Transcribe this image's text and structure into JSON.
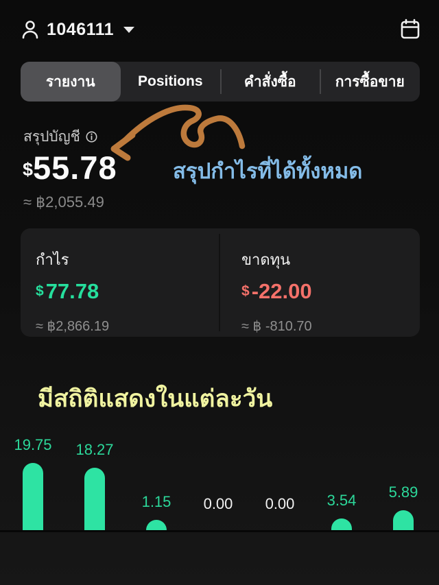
{
  "header": {
    "account_id": "1046111"
  },
  "tabs": [
    {
      "label": "รายงาน",
      "selected": true
    },
    {
      "label": "Positions",
      "selected": false
    },
    {
      "label": "คำสั่งซื้อ",
      "selected": false
    },
    {
      "label": "การซื้อขาย",
      "selected": false
    }
  ],
  "summary": {
    "label": "สรุปบัญชี",
    "currency_symbol": "$",
    "amount": "55.78",
    "baht_equivalent": "≈ ฿2,055.49"
  },
  "annotations": {
    "profit_note": "สรุปกำไรที่ได้ทั้งหมด",
    "daily_note": "มีสถิติแสดงในแต่ละวัน",
    "arrow_color": "#bd7a3c",
    "profit_note_color": "#84bce8",
    "daily_note_color": "#f0f3a0"
  },
  "cards": {
    "profit": {
      "label": "กำไร",
      "currency_symbol": "$",
      "amount": "77.78",
      "baht_equivalent": "≈ ฿2,866.19",
      "color": "#26df9d"
    },
    "loss": {
      "label": "ขาดทุน",
      "currency_symbol": "$",
      "amount": "-22.00",
      "baht_equivalent": "≈ ฿ -810.70",
      "color": "#f4716a"
    }
  },
  "chart_data": {
    "type": "bar",
    "values": [
      19.75,
      18.27,
      1.15,
      0.0,
      0.0,
      3.54,
      5.89
    ],
    "labels": [
      "19.75",
      "18.27",
      "1.15",
      "0.00",
      "0.00",
      "3.54",
      "5.89"
    ],
    "title": "",
    "xlabel": "",
    "ylabel": "",
    "ylim": [
      0,
      19.75
    ],
    "grid": false,
    "legend": false,
    "bar_color": "#2ee3a3",
    "value_label_color_positive": "#2cd89a",
    "value_label_color_zero": "#f2f2f2"
  },
  "colors": {
    "background_top": "#0b0b0b",
    "background_bottom": "#171717",
    "tabbar_bg": "#242426",
    "tab_selected_bg": "#515154",
    "card_bg": "#1d1d1e",
    "muted_text": "#8b8b8b"
  }
}
